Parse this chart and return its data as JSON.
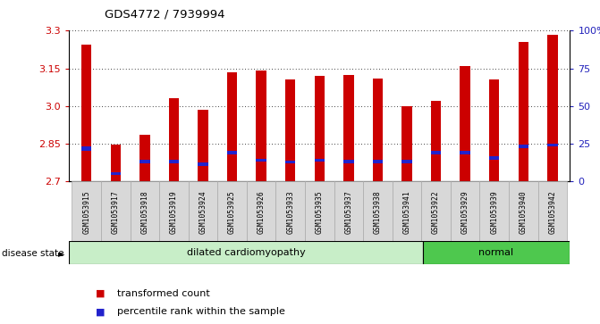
{
  "title": "GDS4772 / 7939994",
  "samples": [
    "GSM1053915",
    "GSM1053917",
    "GSM1053918",
    "GSM1053919",
    "GSM1053924",
    "GSM1053925",
    "GSM1053926",
    "GSM1053933",
    "GSM1053935",
    "GSM1053937",
    "GSM1053938",
    "GSM1053941",
    "GSM1053922",
    "GSM1053929",
    "GSM1053939",
    "GSM1053940",
    "GSM1053942"
  ],
  "red_values": [
    3.245,
    2.845,
    2.885,
    3.03,
    2.985,
    3.135,
    3.14,
    3.105,
    3.12,
    3.125,
    3.11,
    3.0,
    3.02,
    3.16,
    3.105,
    3.255,
    3.285
  ],
  "blue_values": [
    2.822,
    2.725,
    2.773,
    2.773,
    2.762,
    2.808,
    2.778,
    2.772,
    2.778,
    2.773,
    2.773,
    2.773,
    2.808,
    2.808,
    2.788,
    2.832,
    2.838
  ],
  "blue_heights": [
    0.016,
    0.01,
    0.012,
    0.012,
    0.012,
    0.013,
    0.012,
    0.012,
    0.012,
    0.012,
    0.012,
    0.012,
    0.013,
    0.013,
    0.012,
    0.014,
    0.014
  ],
  "ymin": 2.7,
  "ymax": 3.3,
  "yticks": [
    2.7,
    2.85,
    3.0,
    3.15,
    3.3
  ],
  "right_yticks": [
    0,
    25,
    50,
    75,
    100
  ],
  "right_ytick_labels": [
    "0",
    "25",
    "50",
    "75",
    "100%"
  ],
  "disease_groups": [
    {
      "label": "dilated cardiomyopathy",
      "start": 0,
      "end": 12,
      "color": "#c8eec8"
    },
    {
      "label": "normal",
      "start": 12,
      "end": 17,
      "color": "#4ec84e"
    }
  ],
  "bar_color": "#cc0000",
  "blue_color": "#2222cc",
  "bar_width": 0.35,
  "bg_color": "#ffffff",
  "grid_color": "#000000",
  "label_bg_color": "#d8d8d8",
  "left_label_color": "#cc0000",
  "right_label_color": "#2222bb",
  "disease_state_label": "disease state",
  "legend_items": [
    {
      "label": "transformed count",
      "color": "#cc0000"
    },
    {
      "label": "percentile rank within the sample",
      "color": "#2222cc"
    }
  ]
}
